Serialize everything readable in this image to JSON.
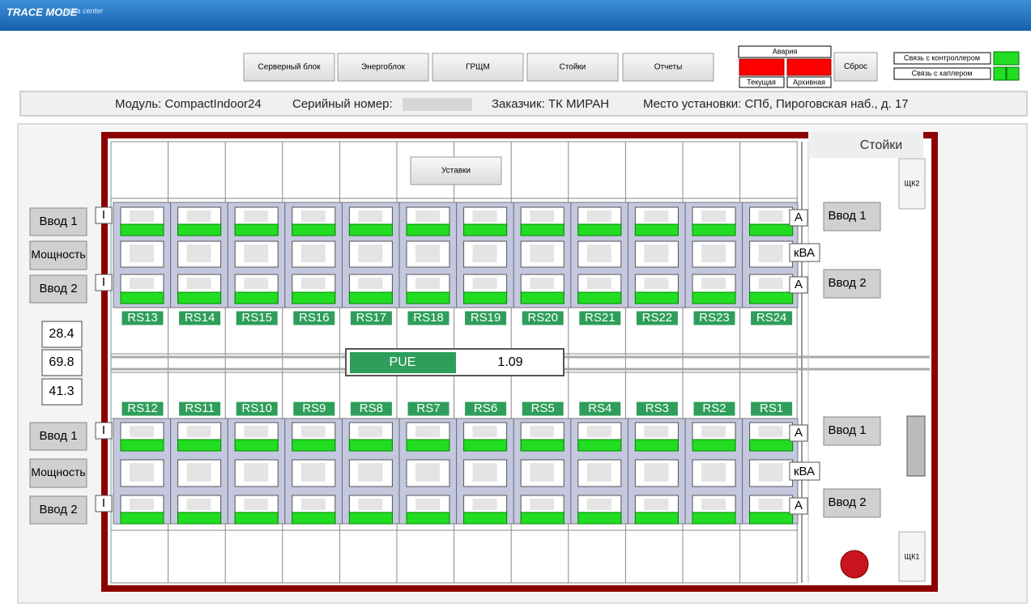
{
  "header": {
    "logo": "TRACE MODE",
    "logo_sub": "data center"
  },
  "nav": [
    "Серверный блок",
    "Энергоблок",
    "ГРЩМ",
    "Стойки",
    "Отчеты"
  ],
  "alarm": {
    "title": "Авария",
    "current": "Текущая",
    "archive": "Архивная",
    "reset": "Сброс"
  },
  "links": [
    "Связь с контроллером",
    "Связь с каплером"
  ],
  "info": {
    "module": "Модуль: CompactIndoor24",
    "serial": "Серийный номер:",
    "customer": "Заказчик:  ТК МИРАН",
    "location": "Место установки: СПб, Пироговская наб., д. 17"
  },
  "plan": {
    "setpoints": "Уставки",
    "racks_title": "Стойки",
    "shk2": "ЩК2",
    "shk1": "ЩК1",
    "current_symbol": "I",
    "amp_unit": "A",
    "power_unit": "кВА",
    "sections": [
      {
        "labels": [
          "Ввод 1",
          "Мощность",
          "Ввод 2"
        ],
        "right": [
          "Ввод 1",
          "Ввод 2"
        ],
        "racks": [
          "RS13",
          "RS14",
          "RS15",
          "RS16",
          "RS17",
          "RS18",
          "RS19",
          "RS20",
          "RS21",
          "RS22",
          "RS23",
          "RS24"
        ]
      },
      {
        "labels": [
          "Ввод 1",
          "Мощность",
          "Ввод 2"
        ],
        "right": [
          "Ввод 1",
          "Ввод 2"
        ],
        "racks": [
          "RS12",
          "RS11",
          "RS10",
          "RS9",
          "RS8",
          "RS7",
          "RS6",
          "RS5",
          "RS4",
          "RS3",
          "RS2",
          "RS1"
        ]
      }
    ],
    "readings": [
      28.4,
      69.8,
      41.3
    ],
    "pue": {
      "label": "PUE",
      "value": 1.09
    }
  }
}
